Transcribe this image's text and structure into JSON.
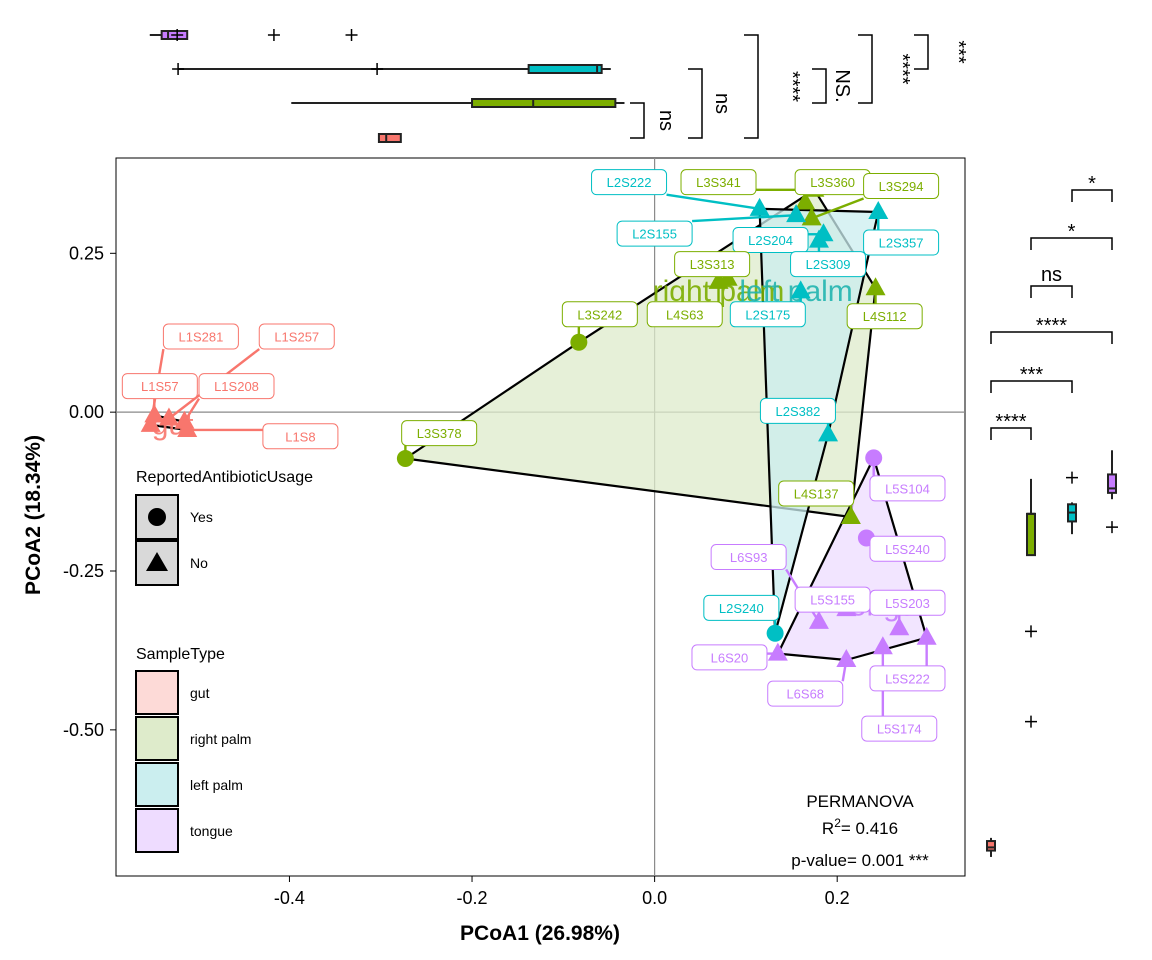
{
  "chart_data": {
    "type": "scatter",
    "xlabel": "PCoA1 (26.98%)",
    "ylabel": "PCoA2 (18.34%)",
    "xlim": [
      -0.59,
      0.34
    ],
    "ylim": [
      -0.73,
      0.4
    ],
    "x_ticks": [
      -0.4,
      -0.2,
      0.0,
      0.2
    ],
    "x_tick_labels": [
      "-0.4",
      "-0.2",
      "0.0",
      "0.2"
    ],
    "y_ticks": [
      0.25,
      0.0,
      -0.25,
      -0.5
    ],
    "y_tick_labels": [
      "0.25",
      "0.00",
      "-0.25",
      "-0.50"
    ],
    "grid": false,
    "colors": {
      "gut": "#F8766D",
      "right palm": "#7CAE00",
      "left palm": "#00BFC4",
      "tongue": "#C77CFF"
    },
    "hull_fills": {
      "gut": "#FDDAD7",
      "right palm": "#DEEBCB",
      "left palm": "#CBEEEF",
      "tongue": "#EEDCFF"
    },
    "group_labels": [
      {
        "group": "gut",
        "text": "gut",
        "x": -0.528,
        "y": -0.035,
        "color": "#F8766D"
      },
      {
        "group": "right palm",
        "text": "right palm",
        "x": 0.07,
        "y": 0.175,
        "color": "#7CAE00"
      },
      {
        "group": "left palm",
        "text": "left palm",
        "x": 0.155,
        "y": 0.175,
        "color": "#22B5B0"
      },
      {
        "group": "tongue",
        "text": "tongue",
        "x": 0.255,
        "y": -0.32,
        "color": "#C77CFF"
      }
    ],
    "points": [
      {
        "id": "L1S281",
        "group": "gut",
        "shape": "triangle",
        "x": -0.552,
        "y": -0.02
      },
      {
        "id": "L1S257",
        "group": "gut",
        "shape": "triangle",
        "x": -0.532,
        "y": -0.01
      },
      {
        "id": "L1S57",
        "group": "gut",
        "shape": "triangle",
        "x": -0.548,
        "y": -0.005
      },
      {
        "id": "L1S208",
        "group": "gut",
        "shape": "triangle",
        "x": -0.515,
        "y": -0.015
      },
      {
        "id": "L1S8",
        "group": "gut",
        "shape": "triangle",
        "x": -0.512,
        "y": -0.028
      },
      {
        "id": "L3S341",
        "group": "right palm",
        "shape": "triangle",
        "x": 0.175,
        "y": 0.35
      },
      {
        "id": "L3S360",
        "group": "right palm",
        "shape": "triangle",
        "x": 0.165,
        "y": 0.33
      },
      {
        "id": "L3S294",
        "group": "right palm",
        "shape": "triangle",
        "x": 0.172,
        "y": 0.305
      },
      {
        "id": "L3S313",
        "group": "right palm",
        "shape": "triangle",
        "x": 0.08,
        "y": 0.21
      },
      {
        "id": "L3S242",
        "group": "right palm",
        "shape": "circle",
        "x": -0.083,
        "y": 0.11
      },
      {
        "id": "L4S63",
        "group": "right palm",
        "shape": "triangle",
        "x": 0.07,
        "y": 0.205
      },
      {
        "id": "L4S112",
        "group": "right palm",
        "shape": "triangle",
        "x": 0.242,
        "y": 0.195
      },
      {
        "id": "L3S378",
        "group": "right palm",
        "shape": "circle",
        "x": -0.273,
        "y": -0.073
      },
      {
        "id": "L4S137",
        "group": "right palm",
        "shape": "triangle",
        "x": 0.215,
        "y": -0.165
      },
      {
        "id": "L2S222",
        "group": "left palm",
        "shape": "triangle",
        "x": 0.115,
        "y": 0.32
      },
      {
        "id": "L2S155",
        "group": "left palm",
        "shape": "triangle",
        "x": 0.155,
        "y": 0.31
      },
      {
        "id": "L2S204",
        "group": "left palm",
        "shape": "triangle",
        "x": 0.185,
        "y": 0.28
      },
      {
        "id": "L2S357",
        "group": "left palm",
        "shape": "triangle",
        "x": 0.245,
        "y": 0.315
      },
      {
        "id": "L2S309",
        "group": "left palm",
        "shape": "triangle",
        "x": 0.18,
        "y": 0.27
      },
      {
        "id": "L2S175",
        "group": "left palm",
        "shape": "triangle",
        "x": 0.16,
        "y": 0.19
      },
      {
        "id": "L2S382",
        "group": "left palm",
        "shape": "triangle",
        "x": 0.19,
        "y": -0.035
      },
      {
        "id": "L2S240",
        "group": "left palm",
        "shape": "circle",
        "x": 0.132,
        "y": -0.348
      },
      {
        "id": "L5S104",
        "group": "tongue",
        "shape": "circle",
        "x": 0.24,
        "y": -0.072
      },
      {
        "id": "L5S240",
        "group": "tongue",
        "shape": "circle",
        "x": 0.232,
        "y": -0.198
      },
      {
        "id": "L6S93",
        "group": "tongue",
        "shape": "triangle",
        "x": 0.18,
        "y": -0.33
      },
      {
        "id": "L5S155",
        "group": "tongue",
        "shape": "triangle",
        "x": 0.21,
        "y": -0.31
      },
      {
        "id": "L5S203",
        "group": "tongue",
        "shape": "triangle",
        "x": 0.268,
        "y": -0.34
      },
      {
        "id": "L6S20",
        "group": "tongue",
        "shape": "triangle",
        "x": 0.135,
        "y": -0.38
      },
      {
        "id": "L6S68",
        "group": "tongue",
        "shape": "triangle",
        "x": 0.21,
        "y": -0.39
      },
      {
        "id": "L5S222",
        "group": "tongue",
        "shape": "triangle",
        "x": 0.298,
        "y": -0.355
      },
      {
        "id": "L5S174",
        "group": "tongue",
        "shape": "triangle",
        "x": 0.25,
        "y": -0.37
      }
    ],
    "labels": [
      {
        "text": "L1S281",
        "group": "gut",
        "x": -0.497,
        "y": 0.119
      },
      {
        "text": "L1S257",
        "group": "gut",
        "x": -0.392,
        "y": 0.119
      },
      {
        "text": "L1S57",
        "group": "gut",
        "x": -0.542,
        "y": 0.041
      },
      {
        "text": "L1S208",
        "group": "gut",
        "x": -0.458,
        "y": 0.041
      },
      {
        "text": "L1S8",
        "group": "gut",
        "x": -0.388,
        "y": -0.038
      },
      {
        "text": "L2S222",
        "group": "left palm",
        "x": -0.028,
        "y": 0.362
      },
      {
        "text": "L3S341",
        "group": "right palm",
        "x": 0.07,
        "y": 0.362
      },
      {
        "text": "L3S360",
        "group": "right palm",
        "x": 0.195,
        "y": 0.362
      },
      {
        "text": "L3S294",
        "group": "right palm",
        "x": 0.27,
        "y": 0.356
      },
      {
        "text": "L2S155",
        "group": "left palm",
        "x": 0.0,
        "y": 0.281
      },
      {
        "text": "L2S204",
        "group": "left palm",
        "x": 0.127,
        "y": 0.271
      },
      {
        "text": "L2S357",
        "group": "left palm",
        "x": 0.27,
        "y": 0.267
      },
      {
        "text": "L3S313",
        "group": "right palm",
        "x": 0.063,
        "y": 0.233
      },
      {
        "text": "L2S309",
        "group": "left palm",
        "x": 0.19,
        "y": 0.233
      },
      {
        "text": "L3S242",
        "group": "right palm",
        "x": -0.06,
        "y": 0.154
      },
      {
        "text": "L4S63",
        "group": "right palm",
        "x": 0.033,
        "y": 0.154
      },
      {
        "text": "L2S175",
        "group": "left palm",
        "x": 0.124,
        "y": 0.154
      },
      {
        "text": "L4S112",
        "group": "right palm",
        "x": 0.252,
        "y": 0.151
      },
      {
        "text": "L2S382",
        "group": "left palm",
        "x": 0.157,
        "y": 0.002
      },
      {
        "text": "L3S378",
        "group": "right palm",
        "x": -0.236,
        "y": -0.033
      },
      {
        "text": "L5S104",
        "group": "tongue",
        "x": 0.277,
        "y": -0.12
      },
      {
        "text": "L4S137",
        "group": "right palm",
        "x": 0.177,
        "y": -0.128
      },
      {
        "text": "L6S93",
        "group": "tongue",
        "x": 0.103,
        "y": -0.228
      },
      {
        "text": "L5S240",
        "group": "tongue",
        "x": 0.277,
        "y": -0.215
      },
      {
        "text": "L2S240",
        "group": "left palm",
        "x": 0.095,
        "y": -0.308
      },
      {
        "text": "L5S155",
        "group": "tongue",
        "x": 0.195,
        "y": -0.295
      },
      {
        "text": "L5S203",
        "group": "tongue",
        "x": 0.277,
        "y": -0.3
      },
      {
        "text": "L6S20",
        "group": "tongue",
        "x": 0.082,
        "y": -0.386
      },
      {
        "text": "L6S68",
        "group": "tongue",
        "x": 0.165,
        "y": -0.443
      },
      {
        "text": "L5S222",
        "group": "tongue",
        "x": 0.277,
        "y": -0.419
      },
      {
        "text": "L5S174",
        "group": "tongue",
        "x": 0.268,
        "y": -0.498
      }
    ],
    "top_boxplots": [
      {
        "group": "tongue",
        "min": -0.553,
        "q1": -0.54,
        "median": -0.533,
        "q3": -0.512,
        "max": -0.512,
        "outliers": [
          -0.523,
          -0.417,
          -0.332
        ]
      },
      {
        "group": "left palm",
        "min": -0.522,
        "q1": -0.138,
        "median": -0.063,
        "q3": -0.058,
        "max": -0.048,
        "outliers": [
          -0.522,
          -0.304
        ]
      },
      {
        "group": "right palm",
        "min": -0.398,
        "q1": -0.2,
        "median": -0.133,
        "q3": -0.043,
        "max": -0.033,
        "outliers": []
      },
      {
        "group": "gut",
        "min": -0.303,
        "q1": -0.302,
        "median": -0.294,
        "q3": -0.278,
        "max": -0.278,
        "outliers": []
      }
    ],
    "right_boxplots": [
      {
        "group": "gut",
        "min": -0.7,
        "q1": -0.69,
        "median": -0.685,
        "q3": -0.675,
        "max": -0.67,
        "outliers": []
      },
      {
        "group": "right palm",
        "min": -0.225,
        "q1": -0.225,
        "median": -0.16,
        "q3": -0.16,
        "max": -0.105,
        "outliers": [
          -0.345,
          -0.487
        ]
      },
      {
        "group": "left palm",
        "min": -0.192,
        "q1": -0.172,
        "median": -0.158,
        "q3": -0.145,
        "max": -0.142,
        "outliers": [
          -0.103
        ]
      },
      {
        "group": "tongue",
        "min": -0.137,
        "q1": -0.127,
        "median": -0.12,
        "q3": -0.098,
        "max": -0.06,
        "outliers": [
          -0.181
        ]
      }
    ],
    "top_significance": [
      "ns",
      "ns",
      "****",
      "NS.",
      "****",
      "***"
    ],
    "right_significance": [
      "*",
      "*",
      "ns",
      "****",
      "***",
      "****"
    ],
    "legend": {
      "shape_title": "ReportedAntibioticUsage",
      "shape_items": [
        {
          "label": "Yes",
          "shape": "circle"
        },
        {
          "label": "No",
          "shape": "triangle"
        }
      ],
      "fill_title": "SampleType",
      "fill_items": [
        "gut",
        "right palm",
        "left palm",
        "tongue"
      ]
    },
    "annotation": {
      "line1": "PERMANOVA",
      "line2_prefix": "R",
      "line2_sup": "2",
      "line2_suffix": "= 0.416",
      "line3": "p-value= 0.001 ***"
    }
  }
}
